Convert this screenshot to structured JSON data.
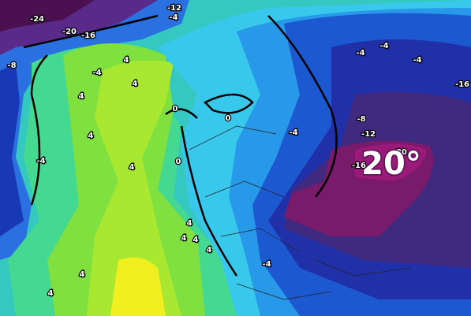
{
  "contour_labels": [
    "-24",
    "-20",
    "-16",
    "-12",
    "-4",
    "-8",
    "4",
    "-4",
    "4",
    "4",
    "0",
    "0",
    "4",
    "-4",
    "4",
    "0",
    "-4",
    "-8",
    "-12",
    "-4",
    "-4",
    "-4",
    "-16",
    "-20",
    "-16",
    "4",
    "4",
    "4",
    "4",
    "-4",
    "4",
    "4"
  ],
  "headline": "20°"
}
